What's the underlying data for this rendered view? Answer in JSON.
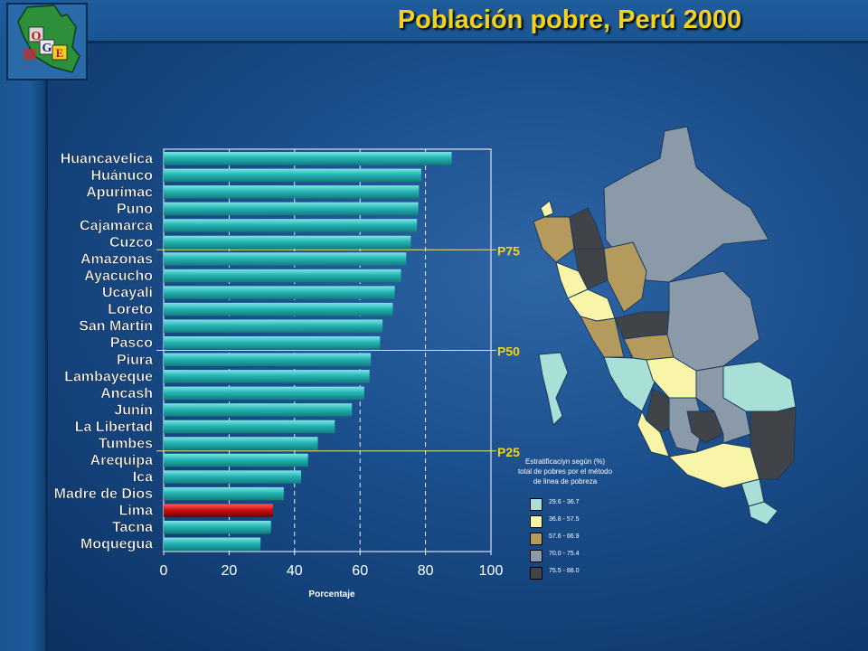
{
  "title": "Población pobre, Perú 2000",
  "colors": {
    "bar": "#25b5b5",
    "bar_highlight": "#cc1010",
    "title": "#f3d21f",
    "percentile_line": "#e8e86a"
  },
  "icons": [
    "oge-logo-peru-map-icon"
  ],
  "chart_data": {
    "type": "bar",
    "orientation": "horizontal",
    "categories": [
      "Huancavelica",
      "Huánuco",
      "Apurímac",
      "Puno",
      "Cajamarca",
      "Cuzco",
      "Amazonas",
      "Ayacucho",
      "Ucayali",
      "Loreto",
      "San Martín",
      "Pasco",
      "Piura",
      "Lambayeque",
      "Ancash",
      "Junín",
      "La Libertad",
      "Tumbes",
      "Arequipa",
      "Ica",
      "Madre de Dios",
      "Lima",
      "Tacna",
      "Moquegua"
    ],
    "values": [
      88.0,
      78.7,
      78.0,
      77.8,
      77.4,
      75.5,
      74.1,
      72.5,
      70.6,
      70.0,
      66.9,
      66.1,
      63.3,
      62.9,
      61.3,
      57.5,
      52.3,
      47.1,
      44.1,
      42.0,
      36.7,
      33.4,
      32.8,
      29.6
    ],
    "highlight": "Lima",
    "xlabel": "Porcentaje",
    "ylabel": "",
    "xlim": [
      0,
      100
    ],
    "xticks": [
      0,
      20,
      40,
      60,
      80,
      100
    ],
    "grid": true,
    "percentile_markers": [
      {
        "label": "P75",
        "after": "Cuzco"
      },
      {
        "label": "P50",
        "after": "Pasco"
      },
      {
        "label": "P25",
        "after": "Tumbes"
      }
    ]
  },
  "map_legend": {
    "title_lines": [
      "Estratificaciyn según (%)",
      "total de pobres por el método",
      "de linea de pobreza"
    ],
    "items": [
      {
        "label": "29.6 - 36.7",
        "color": "#a8e0d8"
      },
      {
        "label": "36.8 - 57.5",
        "color": "#f8f4a8"
      },
      {
        "label": "57.6 - 66.9",
        "color": "#b49a5c"
      },
      {
        "label": "70.0 - 75.4",
        "color": "#8a9aa8"
      },
      {
        "label": "75.5 - 88.0",
        "color": "#404448"
      }
    ]
  }
}
